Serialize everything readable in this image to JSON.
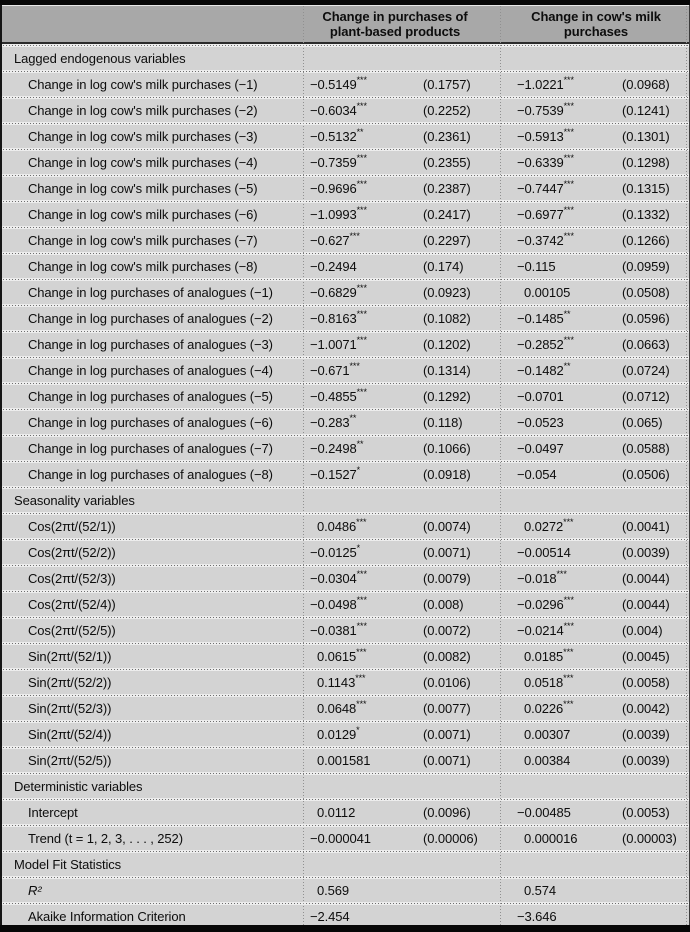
{
  "header": {
    "group1": "Change in purchases of plant-based products",
    "group2": "Change in cow's milk purchases"
  },
  "sections": [
    {
      "title": "Lagged endogenous variables",
      "rows": [
        {
          "label": "Change in log cow's milk purchases (−1)",
          "coef1": "−0.5149***",
          "se1": "(0.1757)",
          "coef2": "−1.0221***",
          "se2": "(0.0968)"
        },
        {
          "label": "Change in log cow's milk purchases (−2)",
          "coef1": "−0.6034***",
          "se1": "(0.2252)",
          "coef2": "−0.7539***",
          "se2": "(0.1241)"
        },
        {
          "label": "Change in log cow's milk purchases (−3)",
          "coef1": "−0.5132**",
          "se1": "(0.2361)",
          "coef2": "−0.5913***",
          "se2": "(0.1301)"
        },
        {
          "label": "Change in log cow's milk purchases (−4)",
          "coef1": "−0.7359***",
          "se1": "(0.2355)",
          "coef2": "−0.6339***",
          "se2": "(0.1298)"
        },
        {
          "label": "Change in log cow's milk purchases (−5)",
          "coef1": "−0.9696***",
          "se1": "(0.2387)",
          "coef2": "−0.7447***",
          "se2": "(0.1315)"
        },
        {
          "label": "Change in log cow's milk purchases (−6)",
          "coef1": "−1.0993***",
          "se1": "(0.2417)",
          "coef2": "−0.6977***",
          "se2": "(0.1332)"
        },
        {
          "label": "Change in log cow's milk purchases (−7)",
          "coef1": "−0.627***",
          "se1": "(0.2297)",
          "coef2": "−0.3742***",
          "se2": "(0.1266)"
        },
        {
          "label": "Change in log cow's milk purchases (−8)",
          "coef1": "−0.2494",
          "se1": "(0.174)",
          "coef2": "−0.115",
          "se2": "(0.0959)"
        },
        {
          "label": "Change in log purchases of analogues (−1)",
          "coef1": "−0.6829***",
          "se1": "(0.0923)",
          "coef2": "0.00105",
          "se2": "(0.0508)"
        },
        {
          "label": "Change in log purchases of analogues (−2)",
          "coef1": "−0.8163***",
          "se1": "(0.1082)",
          "coef2": "−0.1485**",
          "se2": "(0.0596)"
        },
        {
          "label": "Change in log purchases of analogues (−3)",
          "coef1": "−1.0071***",
          "se1": "(0.1202)",
          "coef2": "−0.2852***",
          "se2": "(0.0663)"
        },
        {
          "label": "Change in log purchases of analogues (−4)",
          "coef1": "−0.671***",
          "se1": "(0.1314)",
          "coef2": "−0.1482**",
          "se2": "(0.0724)"
        },
        {
          "label": "Change in log purchases of analogues (−5)",
          "coef1": "−0.4855***",
          "se1": "(0.1292)",
          "coef2": "−0.0701",
          "se2": "(0.0712)"
        },
        {
          "label": "Change in log purchases of analogues (−6)",
          "coef1": "−0.283**",
          "se1": "(0.118)",
          "coef2": "−0.0523",
          "se2": "(0.065)"
        },
        {
          "label": "Change in log purchases of analogues (−7)",
          "coef1": "−0.2498**",
          "se1": "(0.1066)",
          "coef2": "−0.0497",
          "se2": "(0.0588)"
        },
        {
          "label": "Change in log purchases of analogues (−8)",
          "coef1": "−0.1527*",
          "se1": "(0.0918)",
          "coef2": "−0.054",
          "se2": "(0.0506)"
        }
      ]
    },
    {
      "title": "Seasonality variables",
      "rows": [
        {
          "label": "Cos(2πt/(52/1))",
          "coef1": "0.0486***",
          "se1": "(0.0074)",
          "coef2": "0.0272***",
          "se2": "(0.0041)"
        },
        {
          "label": "Cos(2πt/(52/2))",
          "coef1": "−0.0125*",
          "se1": "(0.0071)",
          "coef2": "−0.00514",
          "se2": "(0.0039)"
        },
        {
          "label": "Cos(2πt/(52/3))",
          "coef1": "−0.0304***",
          "se1": "(0.0079)",
          "coef2": "−0.018***",
          "se2": "(0.0044)"
        },
        {
          "label": "Cos(2πt/(52/4))",
          "coef1": "−0.0498***",
          "se1": "(0.008)",
          "coef2": "−0.0296***",
          "se2": "(0.0044)"
        },
        {
          "label": "Cos(2πt/(52/5))",
          "coef1": "−0.0381***",
          "se1": "(0.0072)",
          "coef2": "−0.0214***",
          "se2": "(0.004)"
        },
        {
          "label": "Sin(2πt/(52/1))",
          "coef1": "0.0615***",
          "se1": "(0.0082)",
          "coef2": "0.0185***",
          "se2": "(0.0045)"
        },
        {
          "label": "Sin(2πt/(52/2))",
          "coef1": "0.1143***",
          "se1": "(0.0106)",
          "coef2": "0.0518***",
          "se2": "(0.0058)"
        },
        {
          "label": "Sin(2πt/(52/3))",
          "coef1": "0.0648***",
          "se1": "(0.0077)",
          "coef2": "0.0226***",
          "se2": "(0.0042)"
        },
        {
          "label": "Sin(2πt/(52/4))",
          "coef1": "0.0129*",
          "se1": "(0.0071)",
          "coef2": "0.00307",
          "se2": "(0.0039)"
        },
        {
          "label": "Sin(2πt/(52/5))",
          "coef1": "0.001581",
          "se1": "(0.0071)",
          "coef2": "0.00384",
          "se2": "(0.0039)"
        }
      ]
    },
    {
      "title": "Deterministic variables",
      "rows": [
        {
          "label": "Intercept",
          "coef1": "0.0112",
          "se1": "(0.0096)",
          "coef2": "−0.00485",
          "se2": "(0.0053)"
        },
        {
          "label": "Trend (t = 1, 2, 3, . . . , 252)",
          "coef1": "−0.000041",
          "se1": "(0.00006)",
          "coef2": "0.000016",
          "se2": "(0.00003)"
        }
      ]
    },
    {
      "title": "Model Fit Statistics",
      "rows": [
        {
          "label": "R²",
          "italic": true,
          "coef1": "0.569",
          "se1": "",
          "coef2": "0.574",
          "se2": ""
        },
        {
          "label": "Akaike Information Criterion",
          "coef1": "−2.454",
          "se1": "",
          "coef2": "−3.646",
          "se2": ""
        }
      ]
    }
  ]
}
